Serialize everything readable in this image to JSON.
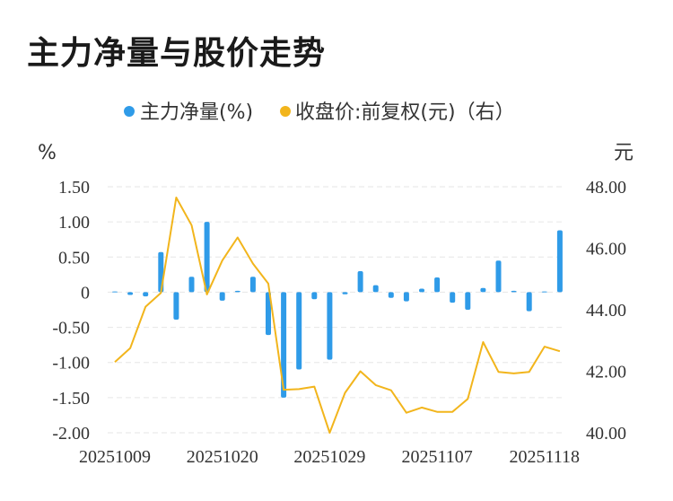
{
  "title": "主力净量与股价走势",
  "colors": {
    "bar": "#2f9be8",
    "line": "#f2b51c",
    "grid": "#e6e6e6",
    "text": "#333333"
  },
  "chart_data": {
    "type": "bar+line",
    "title": "主力净量与股价走势",
    "left_unit": "%",
    "right_unit": "元",
    "legend": {
      "placement": "top-center",
      "bar_label": "主力净量(%)",
      "line_label": "收盘价:前复权(元)（右）"
    },
    "grid": true,
    "y_left": {
      "lim": [
        -2.0,
        1.5
      ],
      "ticks": [
        "1.50",
        "1.00",
        "0.50",
        "0",
        "-0.50",
        "-1.00",
        "-1.50",
        "-2.00"
      ]
    },
    "y_right": {
      "lim": [
        40.0,
        48.0
      ],
      "ticks": [
        "48.00",
        "46.00",
        "44.00",
        "42.00",
        "40.00"
      ]
    },
    "x_ticks": [
      "20251009",
      "20251020",
      "20251029",
      "20251107",
      "20251118"
    ],
    "x_tick_indices": [
      0,
      7,
      14,
      21,
      28
    ],
    "series": [
      {
        "name": "主力净量(%)",
        "kind": "bar",
        "axis": "left",
        "values": [
          0.01,
          -0.04,
          -0.06,
          0.57,
          -0.39,
          0.22,
          1.0,
          -0.12,
          0.02,
          0.22,
          -0.61,
          -1.5,
          -1.1,
          -0.1,
          -0.96,
          -0.03,
          0.3,
          0.1,
          -0.08,
          -0.13,
          0.05,
          0.21,
          -0.15,
          -0.25,
          0.06,
          0.45,
          0.02,
          -0.27,
          0.01,
          0.88
        ]
      },
      {
        "name": "收盘价:前复权(元)（右）",
        "kind": "line",
        "axis": "right",
        "values": [
          42.3,
          42.75,
          44.1,
          44.55,
          47.65,
          46.75,
          44.5,
          45.6,
          46.35,
          45.5,
          44.85,
          41.4,
          41.42,
          41.5,
          40.0,
          41.3,
          42.0,
          41.55,
          41.38,
          40.65,
          40.82,
          40.68,
          40.68,
          41.1,
          42.95,
          41.98,
          41.93,
          41.98,
          42.8,
          42.65
        ]
      }
    ]
  }
}
